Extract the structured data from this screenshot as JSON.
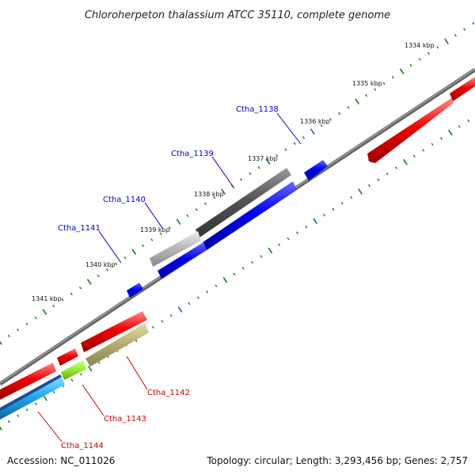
{
  "title": "Chloroherpeton thalassium ATCC 35110, complete genome",
  "accession": "Accession: NC_011026",
  "topology": "Topology: circular; Length: 3,293,456 bp; Genes: 2,757",
  "ticks": [
    "1334 kbp",
    "1335 kbp",
    "1336 kbp",
    "1337 kbp",
    "1338 kbp",
    "1339 kbp",
    "1340 kbp",
    "1341 kbp"
  ],
  "gene_labels": {
    "forward": [
      "Ctha_1138",
      "Ctha_1139",
      "Ctha_1140",
      "Ctha_1141"
    ],
    "reverse": [
      "Ctha_1142",
      "Ctha_1143",
      "Ctha_1144"
    ]
  },
  "colors": {
    "forward_label": "#0000cc",
    "reverse_label": "#cc0000",
    "tick": "#1a7a1a",
    "backbone": "#777777",
    "cds_blue": "#0000ee",
    "cds_red": "#ee0000",
    "cds_dark_gray": "#555555",
    "cds_light_gray": "#bbbbbb",
    "cds_olive": "#b8b070",
    "cds_lime": "#99ee33",
    "cds_cyan": "#22aaee"
  }
}
